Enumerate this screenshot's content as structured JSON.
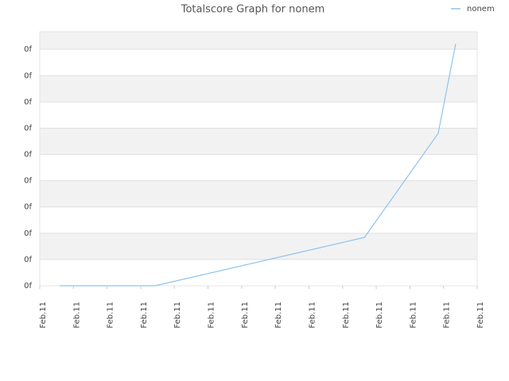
{
  "chart_data": {
    "type": "line",
    "title": "Totalscore Graph for nonem",
    "x": [
      0.59,
      3.43,
      9.65,
      11.84,
      12.36
    ],
    "series": [
      {
        "name": "nonem",
        "color": "#8ec3ef",
        "values": [
          0,
          0,
          1.84,
          5.8,
          9.21
        ]
      }
    ],
    "xlim": [
      0,
      13
    ],
    "xticks": [
      {
        "value": 0,
        "label": "Feb.11"
      },
      {
        "value": 1,
        "label": "Feb.11"
      },
      {
        "value": 2,
        "label": "Feb.11"
      },
      {
        "value": 3,
        "label": "Feb.11"
      },
      {
        "value": 4,
        "label": "Feb.11"
      },
      {
        "value": 5,
        "label": "Feb.11"
      },
      {
        "value": 6,
        "label": "Feb.11"
      },
      {
        "value": 7,
        "label": "Feb.11"
      },
      {
        "value": 8,
        "label": "Feb.11"
      },
      {
        "value": 9,
        "label": "Feb.11"
      },
      {
        "value": 10,
        "label": "Feb.11"
      },
      {
        "value": 11,
        "label": "Feb.11"
      },
      {
        "value": 12,
        "label": "Feb.11"
      },
      {
        "value": 13,
        "label": "Feb.11"
      }
    ],
    "ylim": [
      0,
      9.67
    ],
    "yticks": [
      {
        "value": 0,
        "label": "0f"
      },
      {
        "value": 1,
        "label": "0f"
      },
      {
        "value": 2,
        "label": "0f"
      },
      {
        "value": 3,
        "label": "0f"
      },
      {
        "value": 4,
        "label": "0f"
      },
      {
        "value": 5,
        "label": "0f"
      },
      {
        "value": 6,
        "label": "0f"
      },
      {
        "value": 7,
        "label": "0f"
      },
      {
        "value": 8,
        "label": "0f"
      },
      {
        "value": 9,
        "label": "0f"
      }
    ],
    "grid": true,
    "legend": "top-right"
  }
}
